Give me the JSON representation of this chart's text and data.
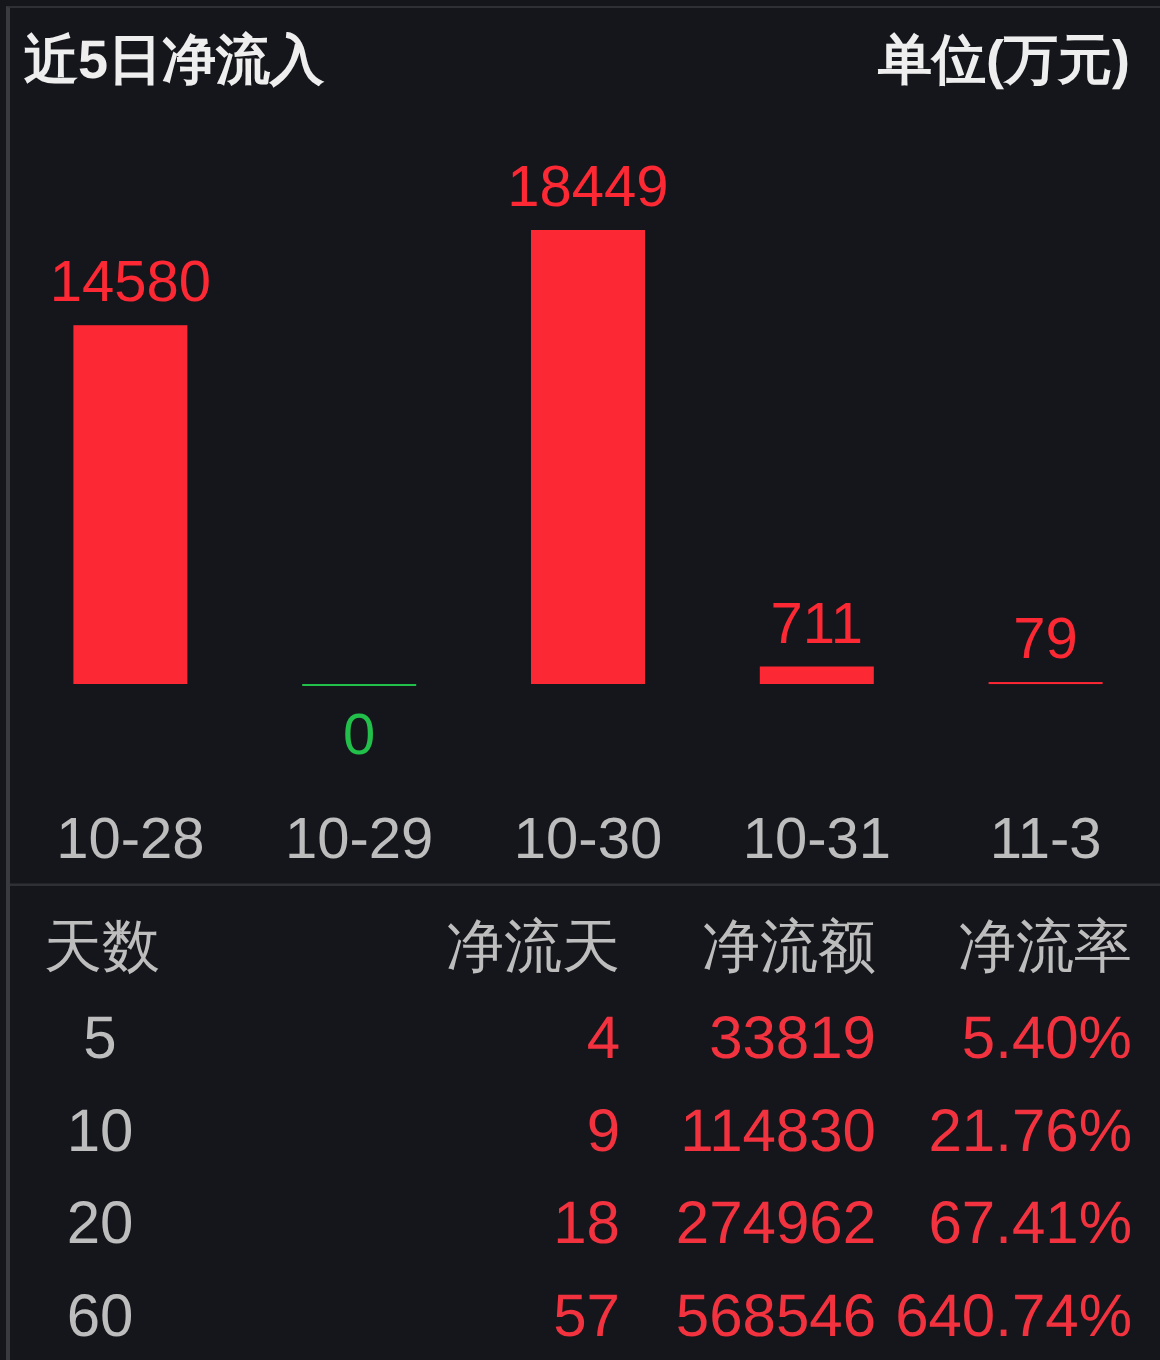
{
  "chart_data": [
    {
      "type": "bar",
      "title": "近5日净流入",
      "subtitle": "单位(万元)",
      "categories": [
        "10-28",
        "10-29",
        "10-30",
        "10-31",
        "11-3"
      ],
      "values": [
        14580,
        0,
        18449,
        711,
        79
      ],
      "colors": [
        "#fc2935",
        "#22c04b",
        "#fc2935",
        "#fc2935",
        "#fc2935"
      ],
      "data_labels": true
    },
    {
      "type": "other",
      "ylabel": "天数",
      "categories": [
        "净流天",
        "净流额",
        "净流率"
      ],
      "y_categories": [
        "5",
        "10",
        "20",
        "60"
      ],
      "cell_labels": [
        [
          "4",
          "33819",
          "5.40%"
        ],
        [
          "9",
          "114830",
          "21.76%"
        ],
        [
          "18",
          "274962",
          "67.41%"
        ],
        [
          "57",
          "568546",
          "640.74%"
        ]
      ]
    }
  ]
}
